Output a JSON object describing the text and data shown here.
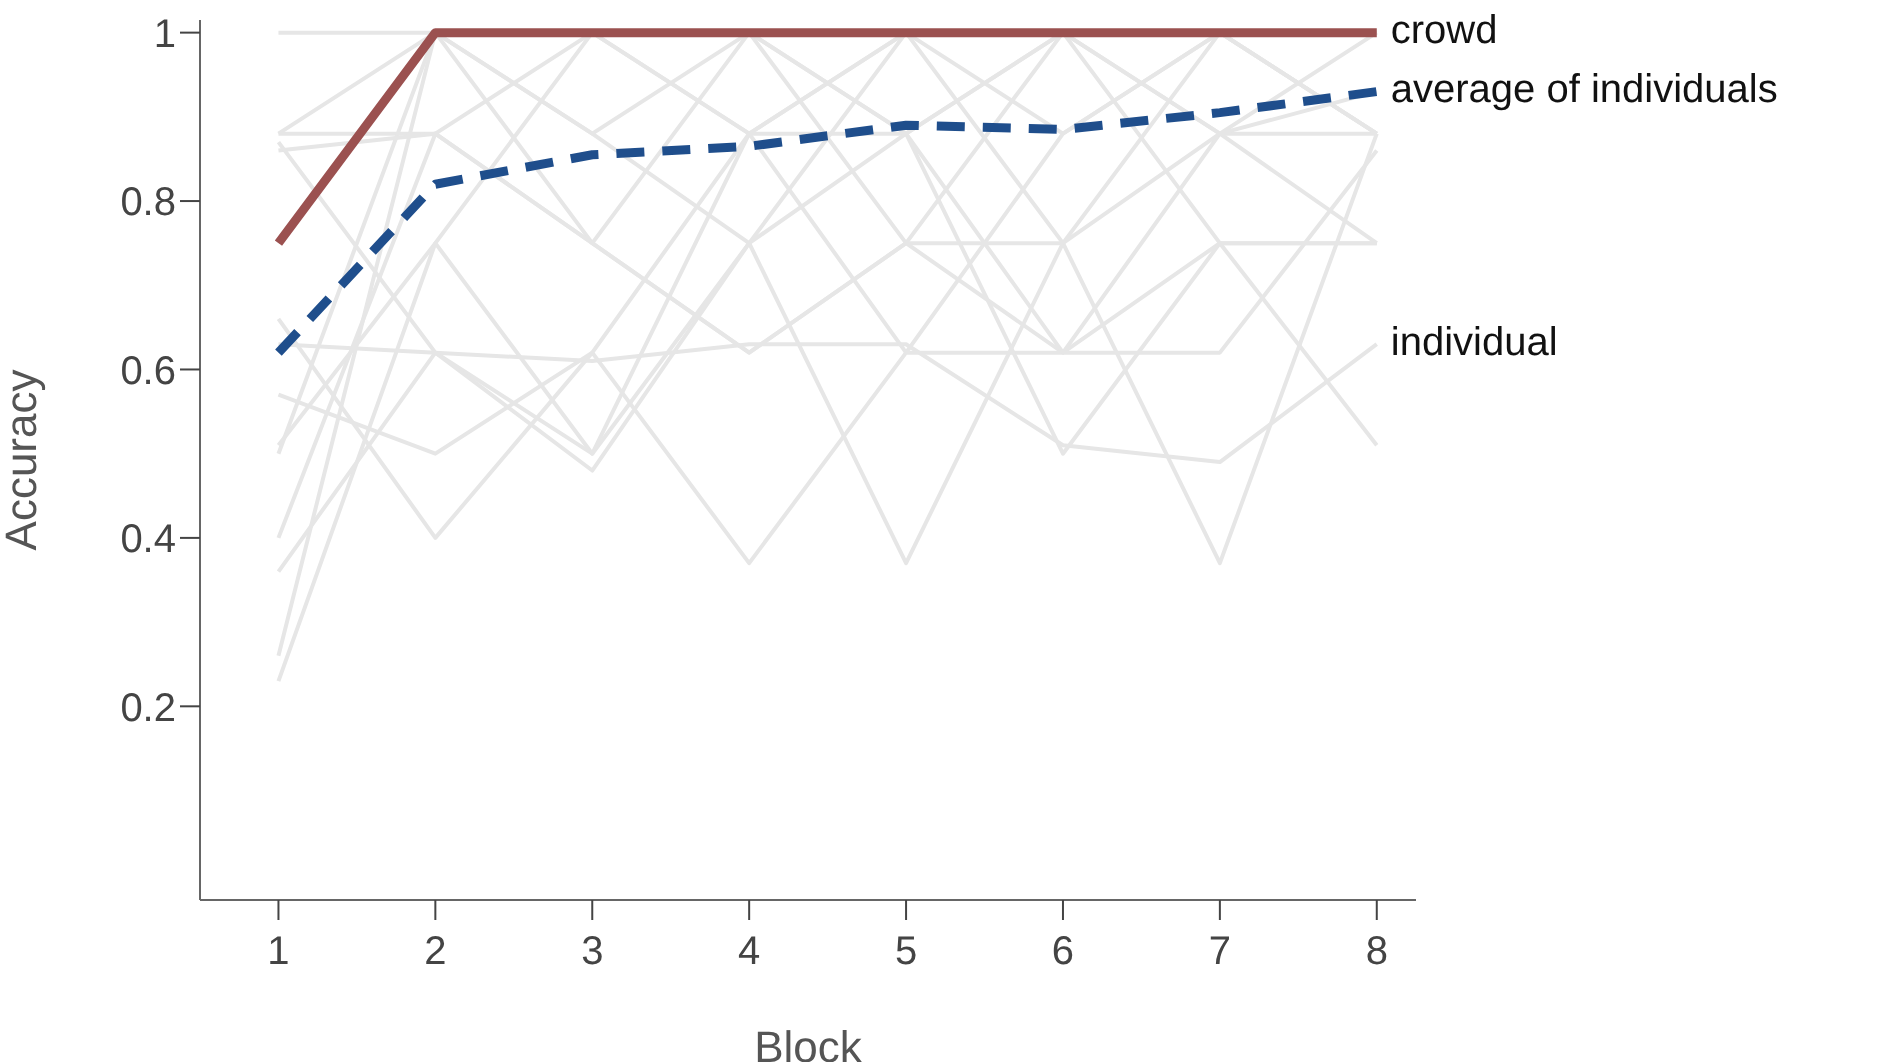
{
  "chart_data": {
    "type": "line",
    "xlabel": "Block",
    "ylabel": "Accuracy",
    "x": [
      1,
      2,
      3,
      4,
      5,
      6,
      7,
      8
    ],
    "xlim": [
      0.5,
      8.25
    ],
    "xticks": [
      1,
      2,
      3,
      4,
      5,
      6,
      7,
      8
    ],
    "ylim": [
      -0.03,
      1.015
    ],
    "yticks": [
      0.2,
      0.4,
      0.6,
      0.8,
      1
    ],
    "grid": false,
    "legend": false,
    "marker": "none",
    "series": [
      {
        "name": "individual",
        "color": "#e6e6e6",
        "values": [
          0.63,
          0.62,
          0.61,
          0.63,
          0.63,
          0.51,
          0.49,
          0.63
        ]
      },
      {
        "color": "#e6e6e6",
        "values": [
          1,
          1,
          null,
          null,
          null,
          null,
          null,
          null
        ]
      },
      {
        "color": "#e6e6e6",
        "values": [
          0.88,
          1,
          0.88,
          1,
          0.88,
          1,
          1,
          0.88
        ]
      },
      {
        "color": "#e6e6e6",
        "values": [
          0.88,
          0.88,
          1,
          0.88,
          1,
          0.88,
          1,
          0.88
        ]
      },
      {
        "color": "#e6e6e6",
        "values": [
          0.75,
          1,
          1,
          0.88,
          1,
          1,
          0.88,
          1
        ]
      },
      {
        "color": "#e6e6e6",
        "values": [
          0.5,
          1,
          0.75,
          1,
          0.75,
          1,
          0.88,
          0.88
        ]
      },
      {
        "color": "#e6e6e6",
        "values": [
          0.26,
          1,
          0.88,
          0.75,
          1,
          0.75,
          1,
          0.88
        ]
      },
      {
        "color": "#e6e6e6",
        "values": [
          0.23,
          0.75,
          1,
          1,
          0.88,
          1,
          0.75,
          0.75
        ]
      },
      {
        "color": "#e6e6e6",
        "values": [
          0.36,
          0.62,
          0.5,
          0.88,
          0.62,
          0.88,
          1,
          1
        ]
      },
      {
        "color": "#e6e6e6",
        "values": [
          0.4,
          0.88,
          0.75,
          0.62,
          0.75,
          0.62,
          0.88,
          0.75
        ]
      },
      {
        "color": "#e6e6e6",
        "values": [
          0.51,
          0.75,
          0.5,
          0.75,
          0.37,
          0.75,
          0.37,
          0.88
        ]
      },
      {
        "color": "#e6e6e6",
        "values": [
          0.57,
          0.5,
          0.62,
          0.37,
          0.62,
          0.62,
          0.75,
          0.51
        ]
      },
      {
        "color": "#e6e6e6",
        "values": [
          0.66,
          0.4,
          0.62,
          0.88,
          0.88,
          0.62,
          0.62,
          0.86
        ]
      },
      {
        "color": "#e6e6e6",
        "values": [
          0.86,
          0.88,
          0.75,
          0.62,
          0.75,
          0.75,
          0.88,
          0.93
        ]
      },
      {
        "color": "#e6e6e6",
        "values": [
          0.87,
          0.62,
          0.48,
          0.75,
          0.88,
          0.5,
          0.75,
          0.75
        ]
      },
      {
        "name": "crowd",
        "color": "#9b5150",
        "line_style": "solid",
        "values": [
          0.75,
          1,
          1,
          1,
          1,
          1,
          1,
          1
        ]
      },
      {
        "name": "average of individuals",
        "color": "#1f4e8c",
        "line_style": "dashed",
        "values": [
          0.62,
          0.82,
          0.855,
          0.865,
          0.89,
          0.885,
          0.905,
          0.93
        ]
      }
    ]
  }
}
